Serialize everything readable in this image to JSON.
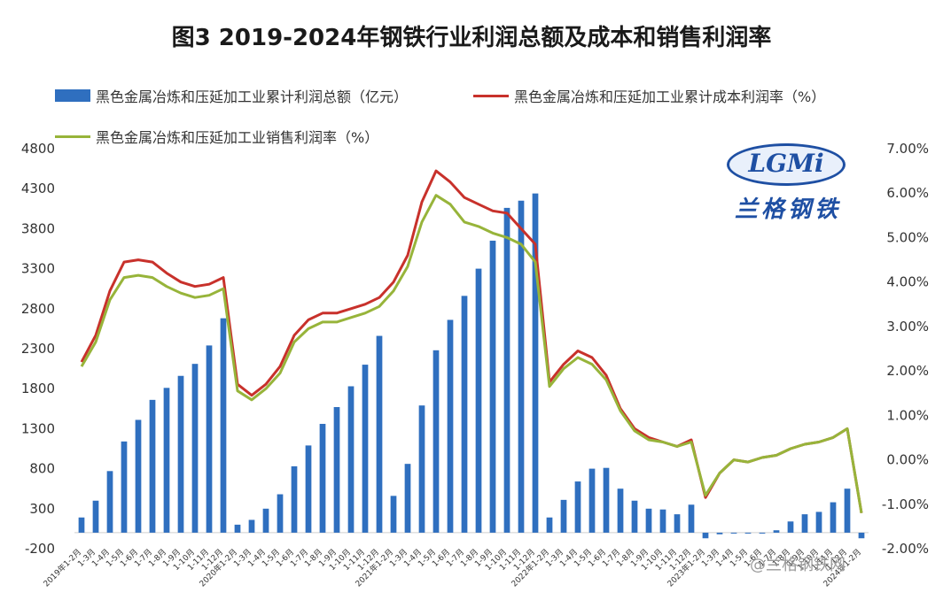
{
  "title": "图3 2019-2024年钢铁行业利润总额及成本和销售利润率",
  "legend": {
    "bar": "黑色金属冶炼和压延加工业累计利润总额（亿元）",
    "red": "黑色金属冶炼和压延加工业累计成本利润率（%）",
    "green": "黑色金属冶炼和压延加工业销售利润率（%）"
  },
  "logo": {
    "text": "LGMi",
    "cn": "兰格钢铁"
  },
  "watermark": "@兰格钢铁网",
  "colors": {
    "bar": "#2f6fbf",
    "red": "#c8312b",
    "green": "#97b43a",
    "axis": "#333333"
  },
  "chart_data": {
    "type": "bar",
    "left_axis": {
      "min": -200,
      "max": 4800,
      "ticks": [
        4800,
        4300,
        3800,
        3300,
        2800,
        2300,
        1800,
        1300,
        800,
        300,
        -200
      ]
    },
    "right_axis": {
      "min": -2,
      "max": 7,
      "ticks": [
        "7.00%",
        "6.00%",
        "5.00%",
        "4.00%",
        "3.00%",
        "2.00%",
        "1.00%",
        "0.00%",
        "-1.00%",
        "-2.00%"
      ]
    },
    "x_tick_labels": [
      "2019年1-2月",
      "1-3月",
      "1-4月",
      "1-5月",
      "1-6月",
      "1-7月",
      "1-8月",
      "1-9月",
      "1-10月",
      "1-11月",
      "1-12月",
      "2020年1-2月",
      "1-3月",
      "1-4月",
      "1-5月",
      "1-6月",
      "1-7月",
      "1-8月",
      "1-9月",
      "1-10月",
      "1-11月",
      "1-12月",
      "2021年1-2月",
      "1-3月",
      "1-4月",
      "1-5月",
      "1-6月",
      "1-7月",
      "1-8月",
      "1-9月",
      "1-10月",
      "1-11月",
      "1-12月",
      "2022年1-2月",
      "1-3月",
      "1-4月",
      "1-5月",
      "1-6月",
      "1-7月",
      "1-8月",
      "1-9月",
      "1-10月",
      "1-11月",
      "1-12月",
      "2023年1-2月",
      "1-3月",
      "1-4月",
      "1-5月",
      "1-6月",
      "1-7月",
      "1-8月",
      "1-9月",
      "1-10月",
      "1-11月",
      "1-12月",
      "2024年1-2月"
    ],
    "series": [
      {
        "name": "黑色金属冶炼和压延加工业累计利润总额（亿元）",
        "kind": "bar",
        "axis": "left",
        "values": [
          190,
          400,
          770,
          1140,
          1410,
          1660,
          1810,
          1960,
          2110,
          2340,
          2680,
          100,
          160,
          300,
          480,
          830,
          1090,
          1360,
          1570,
          1830,
          2100,
          2460,
          460,
          860,
          1590,
          2280,
          2660,
          2960,
          3300,
          3650,
          4060,
          4150,
          4240,
          190,
          410,
          640,
          800,
          810,
          550,
          400,
          300,
          290,
          230,
          350,
          -70,
          -20,
          -10,
          -5,
          0,
          30,
          140,
          230,
          260,
          380,
          550,
          -70
        ]
      },
      {
        "name": "黑色金属冶炼和压延加工业累计成本利润率（%）",
        "kind": "line",
        "axis": "right",
        "values": [
          2.2,
          2.8,
          3.8,
          4.45,
          4.5,
          4.45,
          4.2,
          4.0,
          3.9,
          3.95,
          4.1,
          1.7,
          1.45,
          1.7,
          2.1,
          2.8,
          3.15,
          3.3,
          3.3,
          3.4,
          3.5,
          3.65,
          4.0,
          4.6,
          5.8,
          6.5,
          6.25,
          5.9,
          5.75,
          5.6,
          5.55,
          5.2,
          4.85,
          1.75,
          2.15,
          2.45,
          2.3,
          1.9,
          1.15,
          0.7,
          0.5,
          0.4,
          0.3,
          0.45,
          -0.85,
          -0.3,
          0.0,
          -0.05,
          0.05,
          0.1,
          0.25,
          0.35,
          0.4,
          0.5,
          0.7,
          -1.2
        ]
      },
      {
        "name": "黑色金属冶炼和压延加工业销售利润率（%）",
        "kind": "line",
        "axis": "right",
        "values": [
          2.1,
          2.65,
          3.6,
          4.1,
          4.15,
          4.1,
          3.9,
          3.75,
          3.65,
          3.7,
          3.85,
          1.55,
          1.35,
          1.6,
          1.95,
          2.65,
          2.95,
          3.1,
          3.1,
          3.2,
          3.3,
          3.45,
          3.8,
          4.35,
          5.35,
          5.95,
          5.75,
          5.35,
          5.25,
          5.1,
          5.0,
          4.85,
          4.45,
          1.65,
          2.05,
          2.3,
          2.15,
          1.8,
          1.1,
          0.65,
          0.45,
          0.4,
          0.3,
          0.4,
          -0.8,
          -0.3,
          0.0,
          -0.05,
          0.05,
          0.1,
          0.25,
          0.35,
          0.4,
          0.5,
          0.7,
          -1.2
        ]
      }
    ]
  }
}
